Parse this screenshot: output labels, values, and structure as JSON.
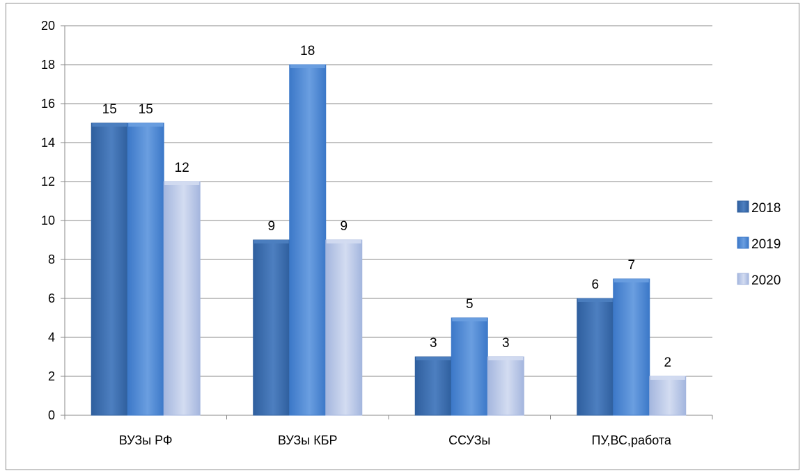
{
  "chart_data": {
    "type": "bar",
    "title": "",
    "xlabel": "",
    "ylabel": "",
    "categories": [
      "ВУЗы РФ",
      "ВУЗы КБР",
      "ССУЗы",
      "ПУ,ВС,работа"
    ],
    "series": [
      {
        "name": "2018",
        "values": [
          15,
          9,
          3,
          6
        ],
        "color": "#2f5f9e",
        "color_light": "#4d7fc0"
      },
      {
        "name": "2019",
        "values": [
          15,
          18,
          5,
          7
        ],
        "color": "#3c78c8",
        "color_light": "#6a9ee0"
      },
      {
        "name": "2020",
        "values": [
          12,
          9,
          3,
          2
        ],
        "color": "#a4b6de",
        "color_light": "#d3dcf1"
      }
    ],
    "ylim": [
      0,
      20
    ],
    "yticks": [
      0,
      2,
      4,
      6,
      8,
      10,
      12,
      14,
      16,
      18,
      20
    ],
    "grid": true,
    "legend_position": "right",
    "data_labels": true
  }
}
